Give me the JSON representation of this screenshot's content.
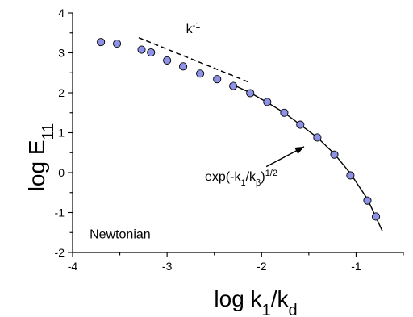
{
  "chart_data": {
    "type": "scatter",
    "xlim": [
      -4,
      -0.5
    ],
    "ylim": [
      -2,
      4
    ],
    "x_ticks": [
      -4,
      -3,
      -2,
      -1
    ],
    "y_ticks": [
      -2,
      -1,
      0,
      1,
      2,
      3,
      4
    ],
    "xlabel": {
      "main": "log k",
      "sub1": "1",
      "mid": "/k",
      "sub2": "d"
    },
    "ylabel": {
      "main": "log E",
      "sub": "11"
    },
    "series": [
      {
        "kind": "points",
        "x": [
          -3.7,
          -3.53,
          -3.27,
          -3.17,
          -3.0,
          -2.83,
          -2.65,
          -2.47,
          -2.3,
          -2.12,
          -1.94,
          -1.76,
          -1.59,
          -1.41,
          -1.23,
          -1.06,
          -0.88,
          -0.79
        ],
        "y": [
          3.27,
          3.23,
          3.08,
          3.01,
          2.81,
          2.66,
          2.48,
          2.34,
          2.17,
          1.99,
          1.77,
          1.5,
          1.2,
          0.88,
          0.45,
          -0.07,
          -0.7,
          -1.1
        ],
        "color": "#8e92e6"
      },
      {
        "kind": "line",
        "x": [
          -2.3,
          -2.12,
          -1.94,
          -1.76,
          -1.59,
          -1.41,
          -1.23,
          -1.06,
          -0.88,
          -0.72
        ],
        "y": [
          2.2,
          2.0,
          1.76,
          1.5,
          1.2,
          0.88,
          0.47,
          -0.02,
          -0.66,
          -1.47
        ]
      },
      {
        "kind": "dashed",
        "x": [
          -3.3,
          -2.12
        ],
        "y": [
          3.38,
          2.25
        ]
      }
    ],
    "annotations": [
      {
        "id": "slope",
        "base": "k",
        "sup": "-1",
        "x": -2.8,
        "y": 3.5
      },
      {
        "id": "fit",
        "prefix": "exp(-k",
        "sub1": "1",
        "mid": "/k",
        "sub2": "β",
        "close": ")",
        "sup": "1/2",
        "x": -2.6,
        "y": -0.2,
        "arrow_to": [
          -1.55,
          0.65
        ]
      },
      {
        "id": "legend",
        "text": "Newtonian",
        "x": -3.82,
        "y": -1.65
      }
    ]
  }
}
